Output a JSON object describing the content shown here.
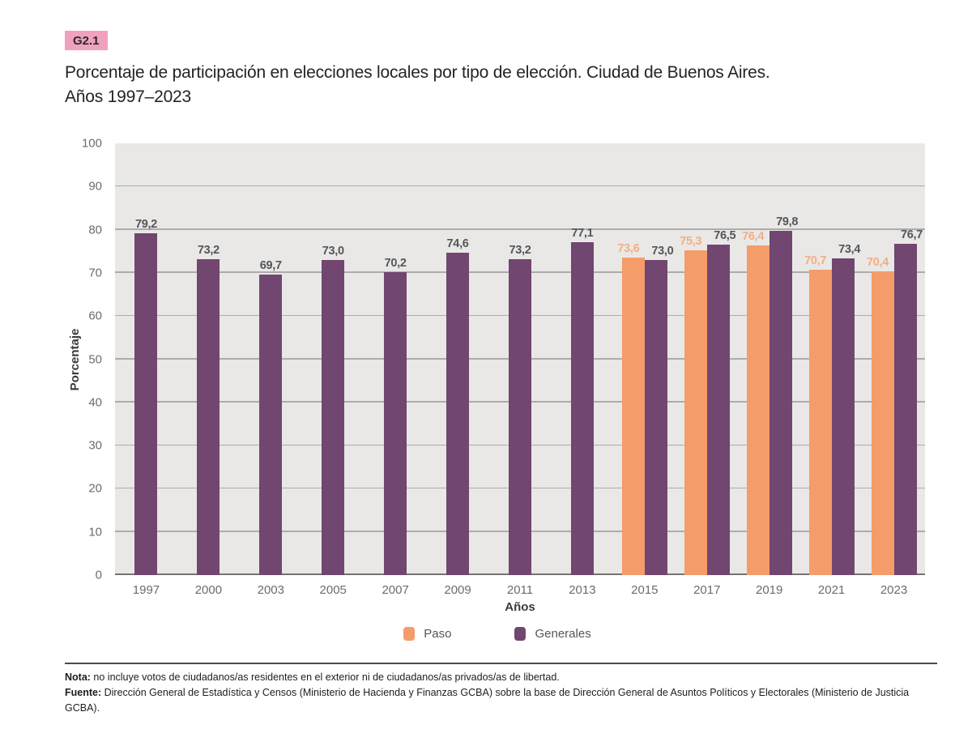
{
  "badge": {
    "label": "G2.1"
  },
  "title": {
    "line1": "Porcentaje de participación en elecciones locales por tipo de elección. Ciudad de Buenos Aires.",
    "line2": "Años 1997–2023"
  },
  "chart_data": {
    "type": "bar",
    "title": "Porcentaje de participación en elecciones locales por tipo de elección. Ciudad de Buenos Aires. Años 1997–2023",
    "categories": [
      "1997",
      "2000",
      "2003",
      "2005",
      "2007",
      "2009",
      "2011",
      "2013",
      "2015",
      "2017",
      "2019",
      "2021",
      "2023"
    ],
    "series": [
      {
        "name": "Paso",
        "color": "#f59c6b",
        "label_color": "#f3ae85",
        "values": [
          null,
          null,
          null,
          null,
          null,
          null,
          null,
          null,
          73.6,
          75.3,
          76.4,
          70.7,
          70.4
        ]
      },
      {
        "name": "Generales",
        "color": "#714670",
        "label_color": "#55565a",
        "values": [
          79.2,
          73.2,
          69.7,
          73.0,
          70.2,
          74.6,
          73.2,
          77.1,
          73.0,
          76.5,
          79.8,
          73.4,
          76.7
        ]
      }
    ],
    "xlabel": "Años",
    "ylabel": "Porcentaje",
    "ylim": [
      0,
      100
    ],
    "yticks": [
      0,
      10,
      20,
      30,
      40,
      50,
      60,
      70,
      80,
      90,
      100
    ],
    "grid": true,
    "legend_position": "bottom",
    "value_labels": true,
    "decimal_separator": ","
  },
  "footer": {
    "note_label": "Nota:",
    "note_text": " no incluye votos de ciudadanos/as residentes en el exterior ni de ciudadanos/as privados/as de libertad.",
    "source_label": "Fuente:",
    "source_text": " Dirección General de Estadística y Censos (Ministerio de Hacienda y Finanzas GCBA) sobre la base de Dirección General de Asuntos Políticos y Electorales (Ministerio de Justicia GCBA)."
  },
  "colors": {
    "paso": "#f59c6b",
    "generales": "#714670",
    "plot_bg": "#e9e8e6",
    "gridline": "#aeacaa",
    "axis_line": "#76746f",
    "tick_text": "#6b6c6e",
    "badge_bg": "#f0a1bf"
  }
}
